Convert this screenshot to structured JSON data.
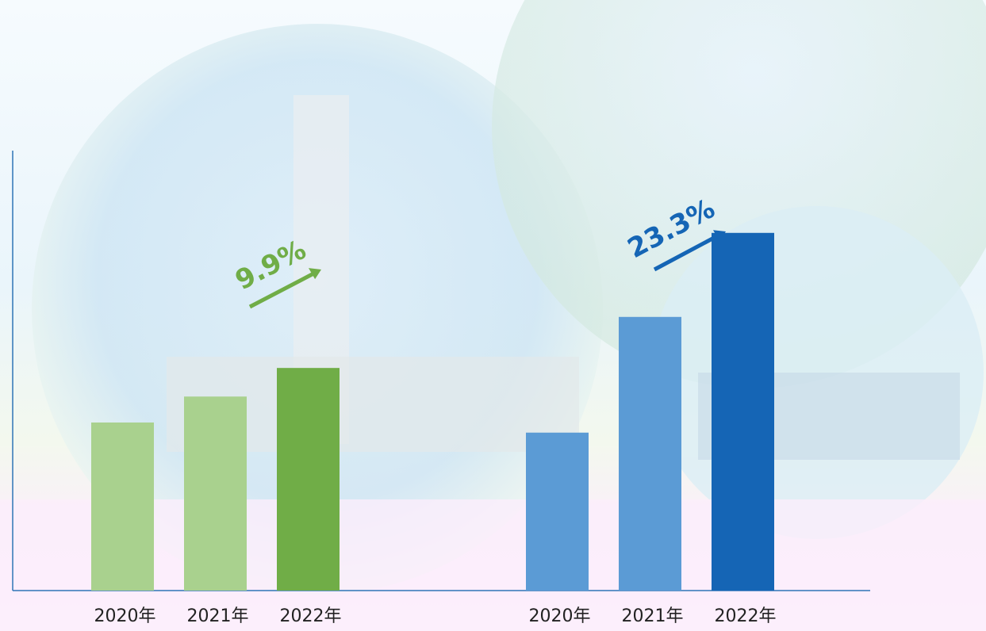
{
  "chart_data": [
    {
      "type": "bar",
      "categories": [
        "2020年",
        "2021年",
        "2022年"
      ],
      "values": [
        38.2,
        44.1,
        50.6
      ],
      "colors": [
        "#a9d18e",
        "#a9d18e",
        "#70ad47"
      ],
      "annotation": "9.9%",
      "annotation_color": "#70ad47",
      "ylim": [
        0,
        100
      ]
    },
    {
      "type": "bar",
      "categories": [
        "2020年",
        "2021年",
        "2022年"
      ],
      "values": [
        35.9,
        62.2,
        81.3
      ],
      "colors": [
        "#5b9bd5",
        "#5b9bd5",
        "#1565b5"
      ],
      "annotation": "23.3%",
      "annotation_color": "#1565b5",
      "ylim": [
        0,
        100
      ]
    }
  ]
}
